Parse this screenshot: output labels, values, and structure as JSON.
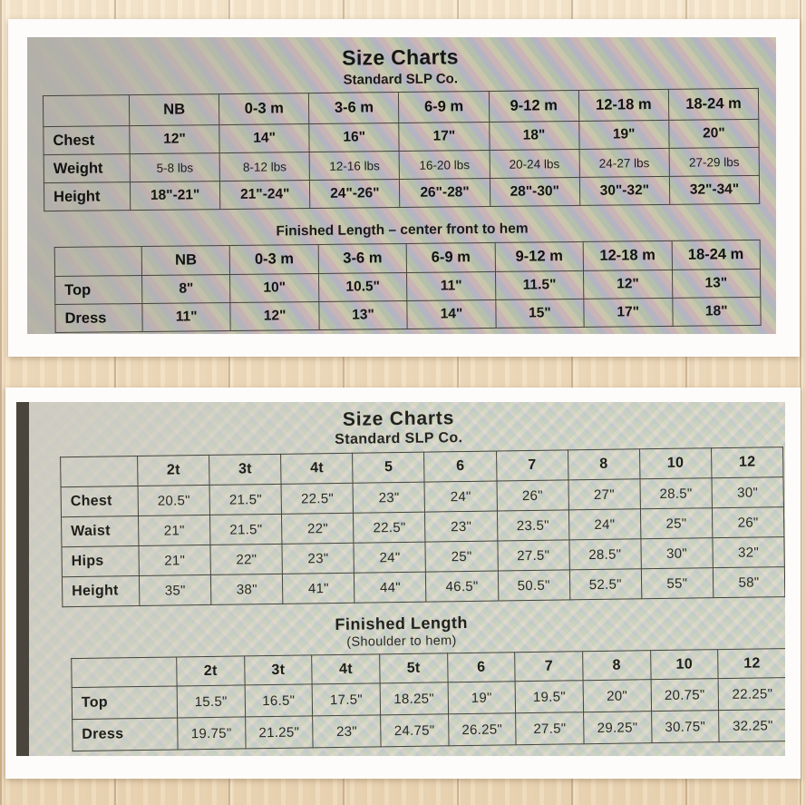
{
  "chart_data": [
    {
      "type": "table",
      "title": "Size Charts",
      "subtitle": "Standard SLP Co.",
      "columns": [
        "NB",
        "0-3 m",
        "3-6 m",
        "6-9 m",
        "9-12 m",
        "12-18 m",
        "18-24 m"
      ],
      "rows": [
        {
          "label": "Chest",
          "values": [
            "12\"",
            "14\"",
            "16\"",
            "17\"",
            "18\"",
            "19\"",
            "20\""
          ]
        },
        {
          "label": "Weight",
          "values": [
            "5-8 lbs",
            "8-12 lbs",
            "12-16 lbs",
            "16-20 lbs",
            "20-24 lbs",
            "24-27 lbs",
            "27-29 lbs"
          ]
        },
        {
          "label": "Height",
          "values": [
            "18\"-21\"",
            "21\"-24\"",
            "24\"-26\"",
            "26\"-28\"",
            "28\"-30\"",
            "30\"-32\"",
            "32\"-34\""
          ]
        }
      ]
    },
    {
      "type": "table",
      "heading": "Finished Length – center front to hem",
      "columns": [
        "NB",
        "0-3 m",
        "3-6 m",
        "6-9 m",
        "9-12 m",
        "12-18 m",
        "18-24 m"
      ],
      "rows": [
        {
          "label": "Top",
          "values": [
            "8\"",
            "10\"",
            "10.5\"",
            "11\"",
            "11.5\"",
            "12\"",
            "13\""
          ]
        },
        {
          "label": "Dress",
          "values": [
            "11\"",
            "12\"",
            "13\"",
            "14\"",
            "15\"",
            "17\"",
            "18\""
          ]
        }
      ]
    },
    {
      "type": "table",
      "title": "Size Charts",
      "subtitle": "Standard SLP Co.",
      "columns": [
        "2t",
        "3t",
        "4t",
        "5",
        "6",
        "7",
        "8",
        "10",
        "12"
      ],
      "rows": [
        {
          "label": "Chest",
          "values": [
            "20.5\"",
            "21.5\"",
            "22.5\"",
            "23\"",
            "24\"",
            "26\"",
            "27\"",
            "28.5\"",
            "30\""
          ]
        },
        {
          "label": "Waist",
          "values": [
            "21\"",
            "21.5\"",
            "22\"",
            "22.5\"",
            "23\"",
            "23.5\"",
            "24\"",
            "25\"",
            "26\""
          ]
        },
        {
          "label": "Hips",
          "values": [
            "21\"",
            "22\"",
            "23\"",
            "24\"",
            "25\"",
            "27.5\"",
            "28.5\"",
            "30\"",
            "32\""
          ]
        },
        {
          "label": "Height",
          "values": [
            "35\"",
            "38\"",
            "41\"",
            "44\"",
            "46.5\"",
            "50.5\"",
            "52.5\"",
            "55\"",
            "58\""
          ]
        }
      ]
    },
    {
      "type": "table",
      "heading": "Finished Length",
      "subheading": "(Shoulder to hem)",
      "columns": [
        "2t",
        "3t",
        "4t",
        "5t",
        "6",
        "7",
        "8",
        "10",
        "12"
      ],
      "rows": [
        {
          "label": "Top",
          "values": [
            "15.5\"",
            "16.5\"",
            "17.5\"",
            "18.25\"",
            "19\"",
            "19.5\"",
            "20\"",
            "20.75\"",
            "22.25\""
          ]
        },
        {
          "label": "Dress",
          "values": [
            "19.75\"",
            "21.25\"",
            "23\"",
            "24.75\"",
            "26.25\"",
            "27.5\"",
            "29.25\"",
            "30.75\"",
            "32.25\""
          ]
        }
      ]
    }
  ]
}
